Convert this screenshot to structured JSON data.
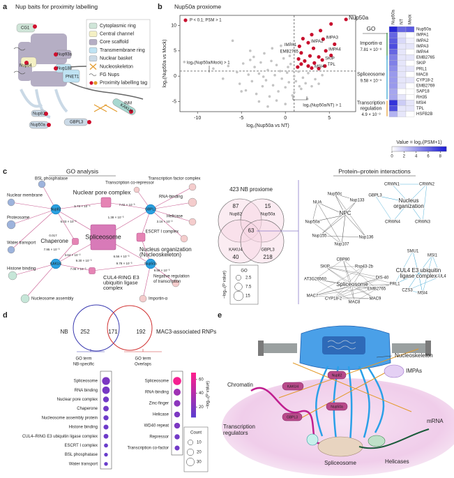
{
  "panel_labels": [
    "a",
    "b",
    "c",
    "d",
    "e"
  ],
  "diagram_a": {
    "title": "Nup baits for proximity labelling",
    "legend": [
      {
        "label": "Cytoplasmic ring",
        "color": "#cfe5d8"
      },
      {
        "label": "Central channel",
        "color": "#f4f0c4"
      },
      {
        "label": "Core scaffold",
        "color": "#b5aec4"
      },
      {
        "label": "Transmembrane ring",
        "color": "#bfe3f3"
      },
      {
        "label": "Nuclear basket",
        "color": "#cad9e6"
      },
      {
        "label": "Nucleoskeleton"
      },
      {
        "label": "FG Nups"
      },
      {
        "label": "Proximity labelling tag"
      }
    ],
    "labels": {
      "cg1": "CG1",
      "nup93a": "Nup93a",
      "nup54": "Nup54",
      "nup188": "Nup188",
      "pnet1": "PNET1",
      "onm": "ONM",
      "inm": "INM",
      "kaku4": "KAKU4",
      "nup82": "Nup82",
      "gbpl3": "GBPL3",
      "nup50a": "Nup50a"
    }
  },
  "chart_data": [
    {
      "type": "scatter",
      "title": "Nup50a proxiome",
      "x_label": "log₂(Nup50a vs NT)",
      "y_label": "log₂(Nup50a vs Mock)",
      "xlim": [
        -12,
        8
      ],
      "ylim": [
        -7,
        12
      ],
      "xticks": [
        -10,
        -5,
        0,
        5
      ],
      "yticks": [
        -5,
        0,
        5,
        10
      ],
      "x_threshold": 1,
      "y_threshold": 1,
      "annotations": [
        "log₂(Nup50a/Mock) > 1",
        "log₂(Nup50a/NT) > 1"
      ],
      "series": [
        {
          "color": "#c4c4c4",
          "x": [
            -11.5,
            -8.2,
            -7.1,
            -6.5,
            -6.0,
            -5.5,
            -5.2,
            -4.8,
            -4.5,
            -4.2,
            -4.0,
            -3.8,
            -3.5,
            -3.3,
            -3.0,
            -2.8,
            -2.6,
            -2.4,
            -2.2,
            -2.0,
            -1.8,
            -1.6,
            -1.4,
            -1.2,
            -1.0,
            -0.8,
            -0.6,
            -0.4,
            -0.2,
            0,
            0.2,
            0.4,
            0.6,
            0.8,
            1.0,
            1.2,
            1.5,
            1.8,
            2.0,
            2.3,
            2.6,
            3.0,
            3.4,
            3.8,
            4.2,
            -3.0,
            -2.0,
            -1.0,
            0.0,
            1.0,
            -4.0,
            -1.5,
            0.5,
            2.5,
            -0.5,
            -2.5,
            1.6,
            -5.0,
            -3.6,
            0.3
          ],
          "values": [
            2.8,
            1.5,
            -0.5,
            2.0,
            7.0,
            0.8,
            -1.5,
            2.5,
            -2.8,
            0.3,
            3.2,
            -1.0,
            1.8,
            -3.5,
            0.5,
            2.7,
            -2.0,
            4.5,
            -0.8,
            1.2,
            -4.0,
            3.0,
            -1.8,
            0.2,
            2.2,
            -3.0,
            1.0,
            -0.5,
            3.5,
            -2.2,
            0.7,
            -1.2,
            2.4,
            -3.8,
            0.0,
            -1.0,
            0.9,
            -2.5,
            -0.3,
            -1.4,
            0.6,
            -2.0,
            -0.6,
            -1.5,
            0.2,
            -5.0,
            -6.0,
            -4.8,
            -5.5,
            -3.2,
            5.0,
            5.5,
            4.0,
            -4.5,
            6.0,
            -0.1,
            -2.0,
            -3.0,
            3.8,
            1.8
          ]
        },
        {
          "name": "P < 0.1; PSM > 1",
          "color": "#c8102e",
          "x": [
            6.9,
            5.2,
            4.0,
            4.3,
            3.0,
            2.0,
            2.6,
            1.6,
            4.6,
            5.6,
            3.2,
            1.8,
            2.8,
            3.8,
            4.2,
            1.5,
            2.2,
            1.8,
            3.3,
            4.5,
            2.6,
            1.4,
            5.2,
            3.0,
            3.8
          ],
          "values": [
            11.2,
            10.3,
            9.0,
            7.3,
            8.2,
            7.4,
            6.6,
            5.9,
            5.0,
            6.3,
            5.5,
            4.6,
            4.0,
            3.8,
            3.2,
            3.4,
            3.0,
            2.4,
            2.6,
            2.0,
            2.0,
            1.8,
            4.1,
            1.6,
            1.5
          ],
          "point_labels": [
            "Nup50a",
            null,
            null,
            "IMPA3",
            null,
            null,
            "IMPA2",
            "IMPA1",
            "IMPA4",
            null,
            null,
            "EMB2765",
            null,
            null,
            "SKIP",
            null,
            null,
            null,
            null,
            "TPL",
            null,
            null,
            null,
            "MSI4",
            null
          ],
          "point_label_colors": [
            "#d0102e",
            null,
            null,
            "#2e8b3a",
            null,
            null,
            "#2e8b3a",
            "#2e8b3a",
            "#2e8b3a",
            null,
            null,
            "#2c9fcf",
            null,
            null,
            "#2c9fcf",
            null,
            null,
            null,
            null,
            "#e39a2a",
            null,
            null,
            null,
            "#e39a2a",
            null
          ]
        }
      ]
    },
    {
      "type": "heatmap",
      "columns": [
        "Nup50a",
        "NT",
        "Mock"
      ],
      "rows": [
        "Nup50a",
        "IMPA1",
        "IMPA2",
        "IMPA3",
        "IMPA4",
        "EMB2765",
        "SKIP",
        "PRL1",
        "MAC8",
        "CYP18-2",
        "EMB2769",
        "SAP18",
        "RH35",
        "MSI4",
        "TPL",
        "HSFB2B"
      ],
      "row_colors": [
        "#d0102e",
        "#2e8b3a",
        "#2e8b3a",
        "#2e8b3a",
        "#2e8b3a",
        "#2c9fcf",
        "#2c9fcf",
        "#2c9fcf",
        "#2c9fcf",
        "#2c9fcf",
        "#2c9fcf",
        "#2c9fcf",
        "#2c9fcf",
        "#e39a2a",
        "#e39a2a",
        "#e39a2a"
      ],
      "values": [
        [
          8.5,
          6,
          6.5
        ],
        [
          6,
          1,
          0
        ],
        [
          6.5,
          1.5,
          0.5
        ],
        [
          7,
          1,
          1
        ],
        [
          6,
          1,
          0
        ],
        [
          5,
          1,
          1
        ],
        [
          5,
          1,
          0
        ],
        [
          4.5,
          1,
          1
        ],
        [
          4,
          1,
          0
        ],
        [
          4,
          1,
          1
        ],
        [
          4,
          1,
          0
        ],
        [
          3.5,
          0,
          0
        ],
        [
          3.5,
          1,
          0
        ],
        [
          8,
          2,
          1
        ],
        [
          7,
          1,
          1
        ],
        [
          3,
          1,
          0
        ]
      ],
      "clim": [
        0,
        9
      ],
      "cticks": [
        0,
        2,
        4,
        6,
        8
      ],
      "colorbar_label": "Value = log₂(PSM+1)",
      "color_low": "#ffffff",
      "color_high": "#1a1ad4",
      "group_header": "GO",
      "groups": [
        {
          "name": [
            "Importin-α"
          ],
          "p": "7.81 × 10⁻⁸",
          "color": "#2e8b3a"
        },
        {
          "name": [
            "Spliceosome"
          ],
          "p": "9.58 × 10⁻⁵",
          "color": "#2c9fcf"
        },
        {
          "name": [
            "Transcription",
            "regulation"
          ],
          "p": "4.9 × 10⁻³",
          "color": "#e39a2a"
        }
      ]
    },
    {
      "type": "dot",
      "panels": [
        {
          "title": [
            "GO term",
            "NB-specific"
          ],
          "title_color": "#3a3ab0",
          "categories": [
            "Spliceosome",
            "RNA binding",
            "Nuclear pore complex",
            "Chaperone",
            "Nucleosome assembly protein",
            "Histone binding",
            "CUL4–RING E3 ubiquitin ligase complex",
            "ESCRT I complex",
            "BSL phosphatase",
            "Water transport"
          ],
          "counts": [
            30,
            26,
            14,
            12,
            10,
            9,
            8,
            5,
            4,
            4
          ],
          "values": [
            18,
            16,
            14,
            14,
            12,
            12,
            12,
            10,
            10,
            10
          ]
        },
        {
          "title": [
            "GO term",
            "Overlaps"
          ],
          "title_color": "#d03030",
          "categories": [
            "Spliceosome",
            "RNA-binding",
            "Zinc-finger",
            "Helicase",
            "WD40 repeat",
            "Repressor",
            "Transcription co-factor"
          ],
          "counts": [
            32,
            22,
            18,
            14,
            14,
            10,
            9
          ],
          "values": [
            66,
            32,
            24,
            18,
            18,
            14,
            14
          ]
        }
      ],
      "clim": [
        5,
        70
      ],
      "cticks": [
        20,
        40,
        60
      ],
      "colorbar_label": "−log₁₀(P value)",
      "color_low": "#5b3ed0",
      "color_high": "#ff1e8c",
      "size_legend_title": "Count",
      "size_ticks": [
        10,
        20,
        30
      ]
    }
  ],
  "network_c": {
    "title": "GO analysis",
    "baits": [
      "Nup82",
      "GBPL3",
      "KAKU4",
      "Nup50a"
    ],
    "terms": [
      [
        "Nuclear pore complex"
      ],
      [
        "Spliceosome"
      ],
      [
        "Chaperone"
      ],
      [
        "Nucleus organization",
        "(Nucleoskeleton)"
      ],
      [
        "CUL4-RING E3",
        "ubiquitin ligase",
        "complex"
      ],
      [
        "BSL phosphatase"
      ],
      [
        "Nuclear membrane"
      ],
      [
        "Proteosome"
      ],
      [
        "Water transport"
      ],
      [
        "Histone binding"
      ],
      [
        "Nucleosome assembly"
      ],
      [
        "Transcription co-repressor"
      ],
      [
        "Transcription factor complex"
      ],
      [
        "RNA-binding"
      ],
      [
        "Helicase"
      ],
      [
        "ESCRT I complex"
      ],
      [
        "Negative regulation",
        "of transcription"
      ],
      [
        "Importin-α"
      ]
    ],
    "edge_labels": [
      "5.73 × 10⁻⁴",
      "7.02 × 10⁻³",
      "6.03 × 10⁻³",
      "1.38 × 10⁻³",
      "3.16 × 10⁻²",
      "0.017",
      "3.64 × 10⁻²",
      "7.95 × 10⁻³",
      "9.30 × 10⁻³",
      "6.56 × 10⁻³",
      "9.78 × 10⁻³",
      "7.06 × 10⁻³",
      "9.58 × 10⁻³"
    ],
    "size_legend": {
      "title": "GO",
      "values": [
        2.5,
        7.5,
        15
      ],
      "label": "−log₁₀(P value)"
    }
  },
  "venn_c": {
    "title": "423 NB proxiome",
    "sets": [
      "Nup82",
      "Nup50a",
      "KAKU4",
      "GBPL3"
    ],
    "only": [
      87,
      15,
      40,
      218
    ],
    "all": 63
  },
  "ppi_c": {
    "title": "Protein–protein interactions",
    "nodes": [
      "NUA",
      "Nup50c",
      "Nup133",
      "GBPL3",
      "CRWN1",
      "CRWN2",
      "Nup50a",
      "Nup155",
      "Nup136",
      "Nup107",
      "CRWN4",
      "CRWN3",
      "SMU1",
      "MSI1",
      "CBP80",
      "Rsp43-2b",
      "SKIP",
      "AT3G26560",
      "DIS-40",
      "CUL4",
      "MAC7",
      "EMB2765",
      "PRL1",
      "CZS3",
      "MSI4",
      "CYP18-2",
      "MAC8",
      "MAC9"
    ],
    "modules": [
      [
        "NPC"
      ],
      [
        "Nucleus",
        "organization"
      ],
      [
        "Spliceosome"
      ],
      [
        "CUL4 E3 ubiquitin",
        "ligase complex"
      ]
    ]
  },
  "venn_d": {
    "left_label": "NB",
    "right_label": "MAC3-associated RNPs",
    "left_only": 252,
    "both": 171,
    "right_only": 192,
    "left_color": "#3a3ab0",
    "right_color": "#d03030"
  },
  "diagram_e": {
    "labels": {
      "nucleoskeleton": "Nucleoskeleton",
      "impas": "IMPAs",
      "chromatin": "Chromatin",
      "regulators": [
        "Transcription",
        "regulators"
      ],
      "spliceosome": "Spliceosome",
      "helicases": "Helicases",
      "mrna": "mRNA",
      "kaku4": "KAKU4",
      "nup82": "Nup82",
      "gbpl3": "GBPL3",
      "nup50a": "Nup50a"
    }
  }
}
